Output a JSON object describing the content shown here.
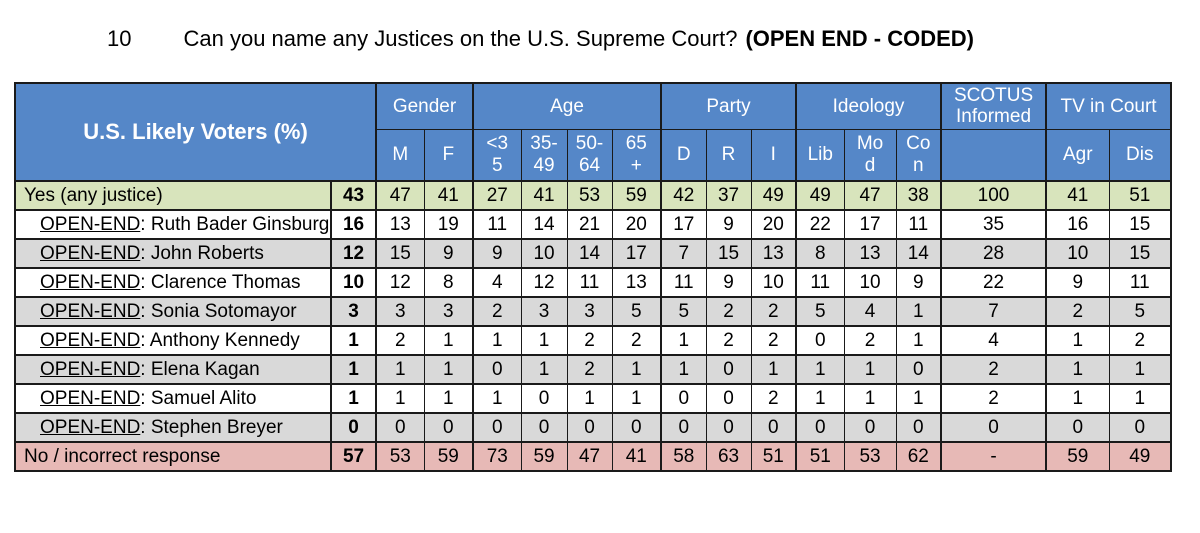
{
  "title": {
    "number": "10",
    "question": "Can you name any Justices on the U.S. Supreme Court?",
    "suffix": "(OPEN END - CODED)"
  },
  "colors": {
    "header_bg": "#5587C8",
    "header_text": "#FFFFFF",
    "border": "#1A1A1A",
    "row_green": "#D8E4BC",
    "row_white": "#FFFFFF",
    "row_gray": "#D9D9D9",
    "row_pink": "#E7B9B6"
  },
  "table": {
    "corner_label": "U.S. Likely Voters (%)",
    "groups": [
      {
        "label": "Gender",
        "span": 2
      },
      {
        "label": "Age",
        "span": 4
      },
      {
        "label": "Party",
        "span": 3
      },
      {
        "label": "Ideology",
        "span": 3
      },
      {
        "label": "SCOTUS\nInformed",
        "span": 1
      },
      {
        "label": "TV in Court",
        "span": 2
      }
    ],
    "subheaders": [
      "M",
      "F",
      "<3\n5",
      "35-\n49",
      "50-\n64",
      "65\n+",
      "D",
      "R",
      "I",
      "Lib",
      "Mo\nd",
      "Co\nn",
      "",
      "Agr",
      "Dis"
    ],
    "rows": [
      {
        "prefix": "",
        "label": "Yes (any justice)",
        "total": "43",
        "values": [
          "47",
          "41",
          "27",
          "41",
          "53",
          "59",
          "42",
          "37",
          "49",
          "49",
          "47",
          "38",
          "100",
          "41",
          "51"
        ],
        "color": "row_green",
        "indent": false
      },
      {
        "prefix": "OPEN-END",
        "label": ": Ruth Bader Ginsburg",
        "total": "16",
        "values": [
          "13",
          "19",
          "11",
          "14",
          "21",
          "20",
          "17",
          "9",
          "20",
          "22",
          "17",
          "11",
          "35",
          "16",
          "15"
        ],
        "color": "row_white",
        "indent": true
      },
      {
        "prefix": "OPEN-END",
        "label": ": John Roberts",
        "total": "12",
        "values": [
          "15",
          "9",
          "9",
          "10",
          "14",
          "17",
          "7",
          "15",
          "13",
          "8",
          "13",
          "14",
          "28",
          "10",
          "15"
        ],
        "color": "row_gray",
        "indent": true
      },
      {
        "prefix": "OPEN-END",
        "label": ": Clarence Thomas",
        "total": "10",
        "values": [
          "12",
          "8",
          "4",
          "12",
          "11",
          "13",
          "11",
          "9",
          "10",
          "11",
          "10",
          "9",
          "22",
          "9",
          "11"
        ],
        "color": "row_white",
        "indent": true
      },
      {
        "prefix": "OPEN-END",
        "label": ": Sonia Sotomayor",
        "total": "3",
        "values": [
          "3",
          "3",
          "2",
          "3",
          "3",
          "5",
          "5",
          "2",
          "2",
          "5",
          "4",
          "1",
          "7",
          "2",
          "5"
        ],
        "color": "row_gray",
        "indent": true
      },
      {
        "prefix": "OPEN-END",
        "label": ": Anthony Kennedy",
        "total": "1",
        "values": [
          "2",
          "1",
          "1",
          "1",
          "2",
          "2",
          "1",
          "2",
          "2",
          "0",
          "2",
          "1",
          "4",
          "1",
          "2"
        ],
        "color": "row_white",
        "indent": true
      },
      {
        "prefix": "OPEN-END",
        "label": ": Elena Kagan",
        "total": "1",
        "values": [
          "1",
          "1",
          "0",
          "1",
          "2",
          "1",
          "1",
          "0",
          "1",
          "1",
          "1",
          "0",
          "2",
          "1",
          "1"
        ],
        "color": "row_gray",
        "indent": true
      },
      {
        "prefix": "OPEN-END",
        "label": ": Samuel Alito",
        "total": "1",
        "values": [
          "1",
          "1",
          "1",
          "0",
          "1",
          "1",
          "0",
          "0",
          "2",
          "1",
          "1",
          "1",
          "2",
          "1",
          "1"
        ],
        "color": "row_white",
        "indent": true
      },
      {
        "prefix": "OPEN-END",
        "label": ": Stephen Breyer",
        "total": "0",
        "values": [
          "0",
          "0",
          "0",
          "0",
          "0",
          "0",
          "0",
          "0",
          "0",
          "0",
          "0",
          "0",
          "0",
          "0",
          "0"
        ],
        "color": "row_gray",
        "indent": true
      },
      {
        "prefix": "",
        "label": "No / incorrect response",
        "total": "57",
        "values": [
          "53",
          "59",
          "73",
          "59",
          "47",
          "41",
          "58",
          "63",
          "51",
          "51",
          "53",
          "62",
          "-",
          "59",
          "49"
        ],
        "color": "row_pink",
        "indent": false
      }
    ]
  }
}
